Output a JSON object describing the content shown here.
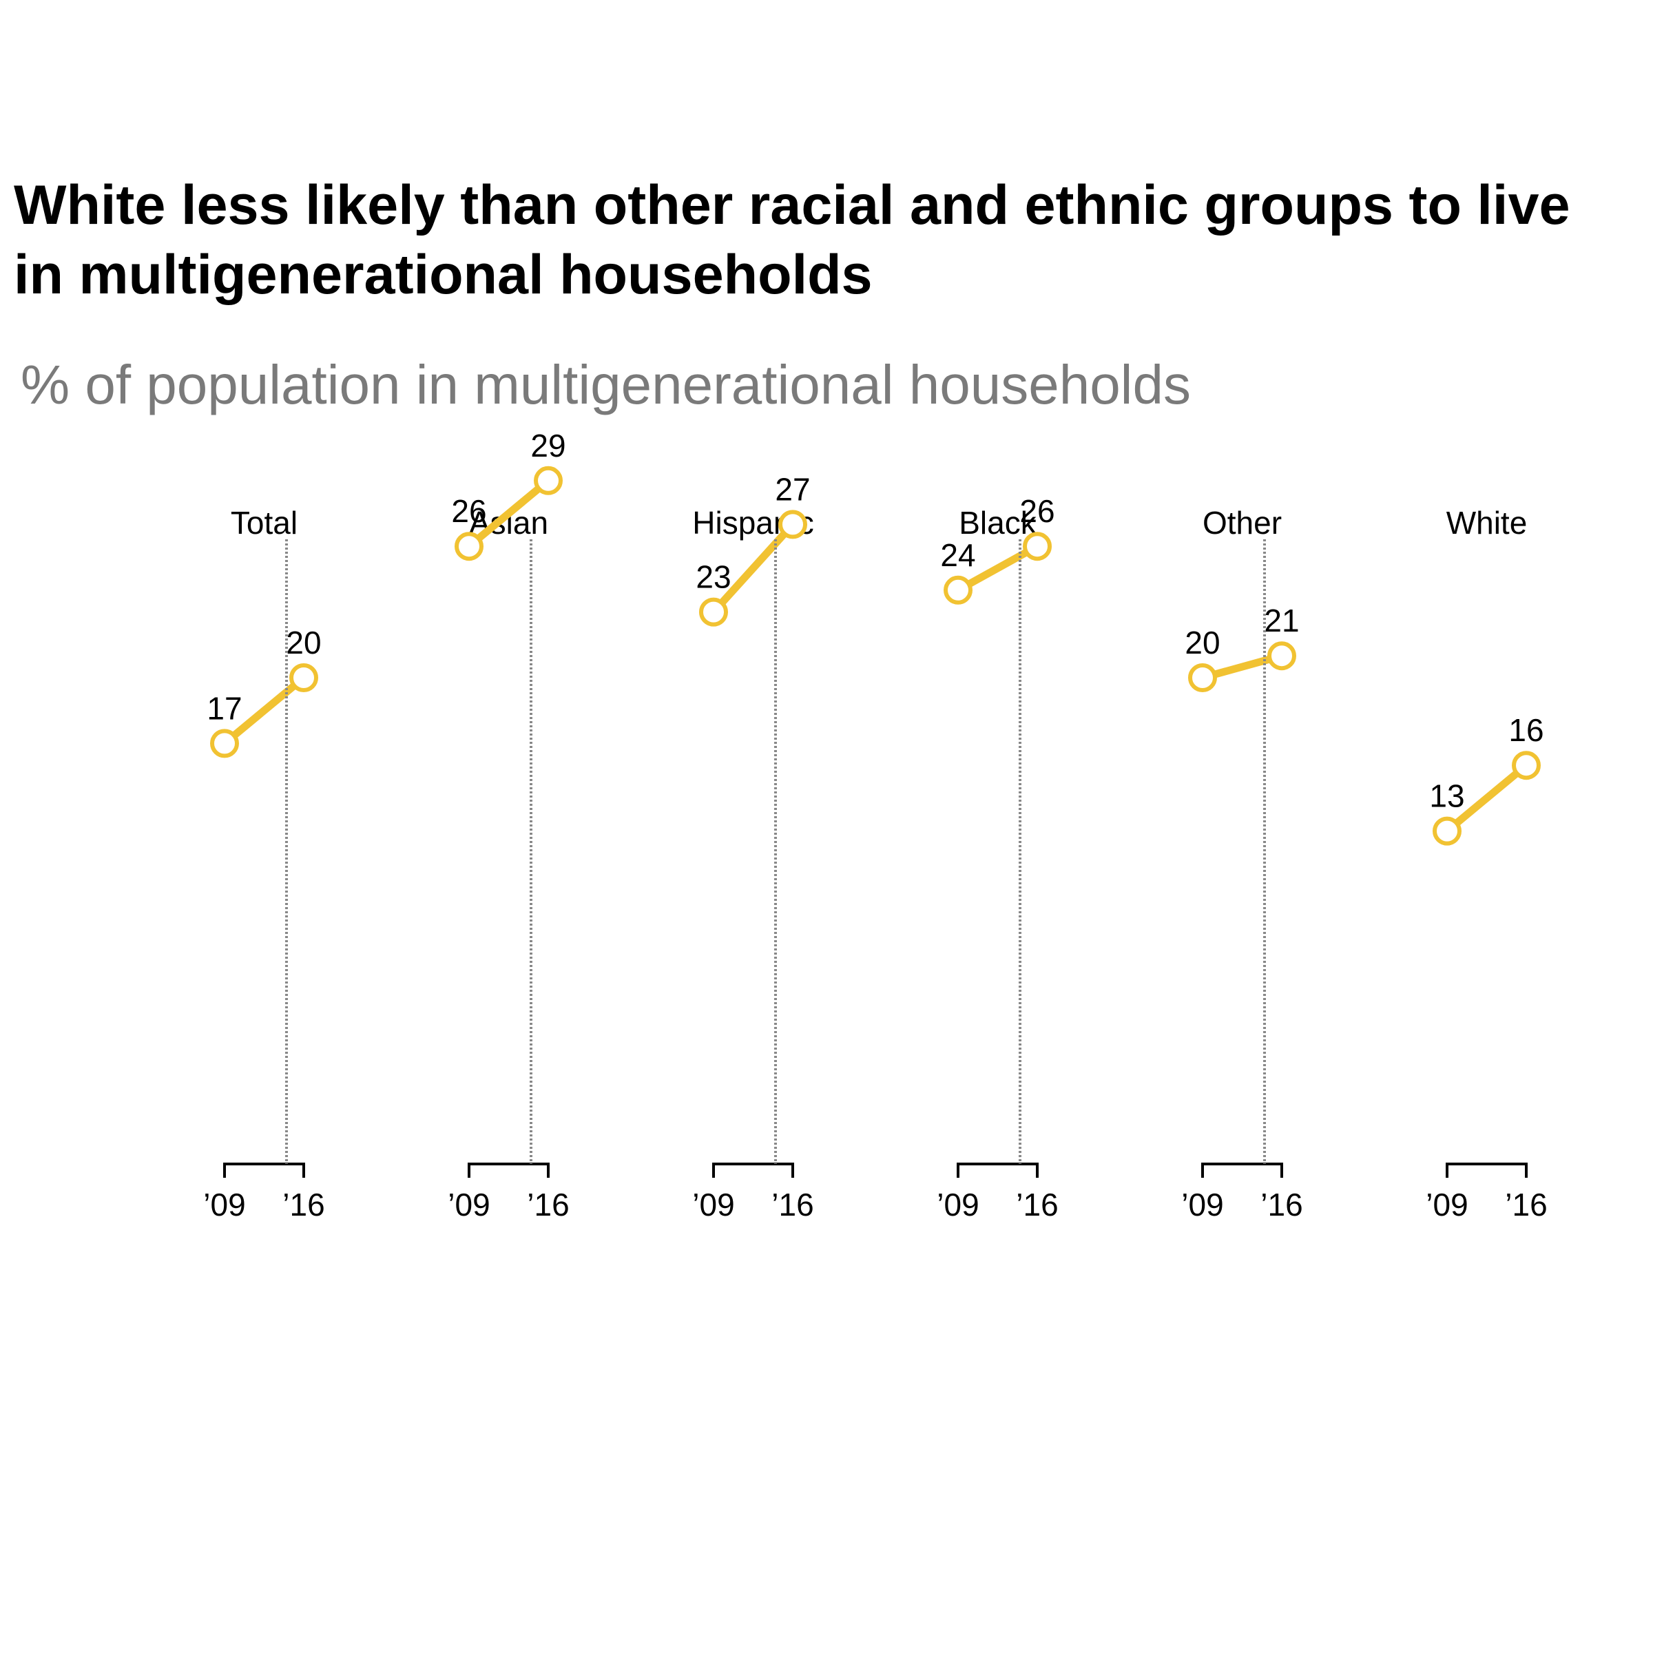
{
  "title": "White less likely than other racial and ethnic groups to live in multigenerational households",
  "subtitle": "% of population in multigenerational households",
  "colors": {
    "line": "#F1C232",
    "text": "#000000",
    "subtitle": "#7A7A7A",
    "divider": "#888888"
  },
  "chart_data": {
    "type": "line",
    "x": [
      "’09",
      "’16"
    ],
    "panels": [
      "Total",
      "Asian",
      "Hispanic",
      "Black",
      "Other",
      "White"
    ],
    "series": [
      {
        "values": [
          17,
          20
        ]
      },
      {
        "values": [
          26,
          29
        ]
      },
      {
        "values": [
          23,
          27
        ]
      },
      {
        "values": [
          24,
          26
        ]
      },
      {
        "values": [
          20,
          21
        ]
      },
      {
        "values": [
          13,
          16
        ]
      }
    ],
    "data_labels": true,
    "grid": false,
    "ylim": [
      0,
      35
    ]
  }
}
